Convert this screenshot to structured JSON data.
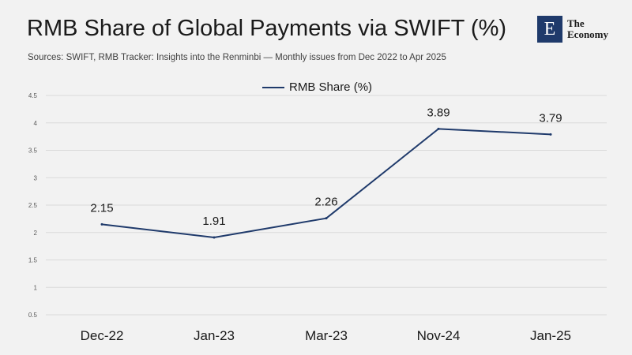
{
  "header": {
    "title": "RMB Share of Global Payments via SWIFT (%)",
    "subtitle": "Sources:  SWIFT, RMB Tracker: Insights into the Renminbi — Monthly issues from Dec 2022 to Apr 2025"
  },
  "logo": {
    "letter": "E",
    "line1": "The",
    "line2": "Economy"
  },
  "colors": {
    "series": "#1f3a6b",
    "grid": "#d9d9d9",
    "background": "#f2f2f2"
  },
  "chart_data": {
    "type": "line",
    "title": "RMB Share of Global Payments via SWIFT (%)",
    "categories": [
      "Dec-22",
      "Jan-23",
      "Mar-23",
      "Nov-24",
      "Jan-25"
    ],
    "series": [
      {
        "name": "RMB Share (%)",
        "values": [
          2.15,
          1.91,
          2.26,
          3.89,
          3.79
        ]
      }
    ],
    "data_labels": [
      "2.15",
      "1.91",
      "2.26",
      "3.89",
      "3.79"
    ],
    "y_ticks": [
      "0.5",
      "1",
      "1.5",
      "2",
      "2.5",
      "3",
      "3.5",
      "4",
      "4.5"
    ],
    "ylim": [
      0.5,
      4.5
    ],
    "grid": true,
    "legend": "top-center",
    "xlabel": "",
    "ylabel": ""
  }
}
